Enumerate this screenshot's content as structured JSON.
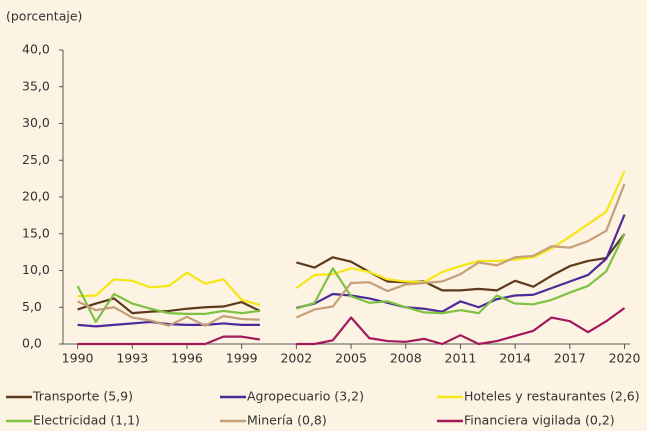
{
  "chart_data": {
    "type": "line",
    "y_axis_label": "(porcentaje)",
    "x": [
      1990,
      1991,
      1992,
      1993,
      1994,
      1995,
      1996,
      1997,
      1998,
      1999,
      2000,
      2001,
      2002,
      2003,
      2004,
      2005,
      2006,
      2007,
      2008,
      2009,
      2010,
      2011,
      2012,
      2013,
      2014,
      2015,
      2016,
      2017,
      2018,
      2019,
      2020
    ],
    "series": [
      {
        "name": "Transporte (5,9)",
        "color": "#5c3a1e",
        "values": [
          4.7,
          5.5,
          6.2,
          4.2,
          4.4,
          4.5,
          4.8,
          5.0,
          5.1,
          5.7,
          4.5,
          null,
          11.1,
          10.4,
          11.8,
          11.2,
          9.8,
          8.5,
          8.4,
          8.5,
          7.3,
          7.3,
          7.5,
          7.3,
          8.6,
          7.8,
          9.3,
          10.6,
          11.3,
          11.7,
          15.0
        ]
      },
      {
        "name": "Agropecuario (3,2)",
        "color": "#4b2a9a",
        "values": [
          2.6,
          2.4,
          2.6,
          2.8,
          3.0,
          2.7,
          2.6,
          2.6,
          2.8,
          2.6,
          2.6,
          null,
          4.9,
          5.5,
          6.8,
          6.6,
          6.2,
          5.6,
          5.0,
          4.8,
          4.4,
          5.8,
          5.0,
          6.1,
          6.6,
          6.7,
          7.6,
          8.5,
          9.4,
          11.6,
          17.6
        ]
      },
      {
        "name": "Hoteles y restaurantes (2,6)",
        "color": "#f5e614",
        "values": [
          6.5,
          6.6,
          8.8,
          8.6,
          7.7,
          7.9,
          9.7,
          8.2,
          8.8,
          6.0,
          5.3,
          null,
          7.6,
          9.4,
          9.5,
          10.3,
          9.8,
          8.8,
          8.5,
          8.4,
          9.8,
          10.6,
          11.3,
          11.3,
          11.5,
          11.8,
          13.0,
          14.6,
          16.3,
          18.0,
          23.5
        ]
      },
      {
        "name": "Electricidad (1,1)",
        "color": "#7dc242",
        "values": [
          7.9,
          3.0,
          6.8,
          5.5,
          4.8,
          4.2,
          4.1,
          4.1,
          4.5,
          4.2,
          4.5,
          null,
          4.8,
          5.6,
          10.3,
          6.5,
          5.6,
          5.8,
          5.0,
          4.3,
          4.2,
          4.6,
          4.2,
          6.6,
          5.5,
          5.4,
          6.0,
          7.0,
          7.9,
          9.9,
          15.0
        ]
      },
      {
        "name": "Minería (0,8)",
        "color": "#c4a07a",
        "values": [
          5.8,
          4.6,
          5.0,
          3.6,
          3.2,
          2.5,
          3.7,
          2.5,
          3.8,
          3.4,
          3.3,
          null,
          3.6,
          4.7,
          5.1,
          8.3,
          8.4,
          7.2,
          8.1,
          8.3,
          8.5,
          9.5,
          11.1,
          10.7,
          11.8,
          12.0,
          13.3,
          13.1,
          14.0,
          15.4,
          21.8
        ]
      },
      {
        "name": "Financiera vigilada (0,2)",
        "color": "#a3195b",
        "values": [
          0,
          0,
          0,
          0,
          0,
          0,
          0,
          0,
          1.0,
          1.0,
          0.6,
          null,
          0,
          0,
          0.5,
          3.6,
          0.8,
          0.4,
          0.3,
          0.7,
          0.0,
          1.2,
          0.0,
          0.4,
          1.1,
          1.8,
          3.6,
          3.1,
          1.6,
          3.1,
          4.9
        ]
      }
    ],
    "xlim": [
      1989.2,
      2020.3
    ],
    "xticks": [
      1990,
      1993,
      1996,
      1999,
      2002,
      2005,
      2008,
      2011,
      2014,
      2017,
      2020
    ],
    "ylim": [
      0,
      40
    ],
    "yticks": [
      {
        "value": 0,
        "label": "0,0"
      },
      {
        "value": 5,
        "label": "5,0"
      },
      {
        "value": 10,
        "label": "10,0"
      },
      {
        "value": 15,
        "label": "15,0"
      },
      {
        "value": 20,
        "label": "20,0"
      },
      {
        "value": 25,
        "label": "25,0"
      },
      {
        "value": 30,
        "label": "30,0"
      },
      {
        "value": 35,
        "label": "35,0"
      },
      {
        "value": 40,
        "label": "40,0"
      }
    ],
    "legend": "bottom"
  }
}
